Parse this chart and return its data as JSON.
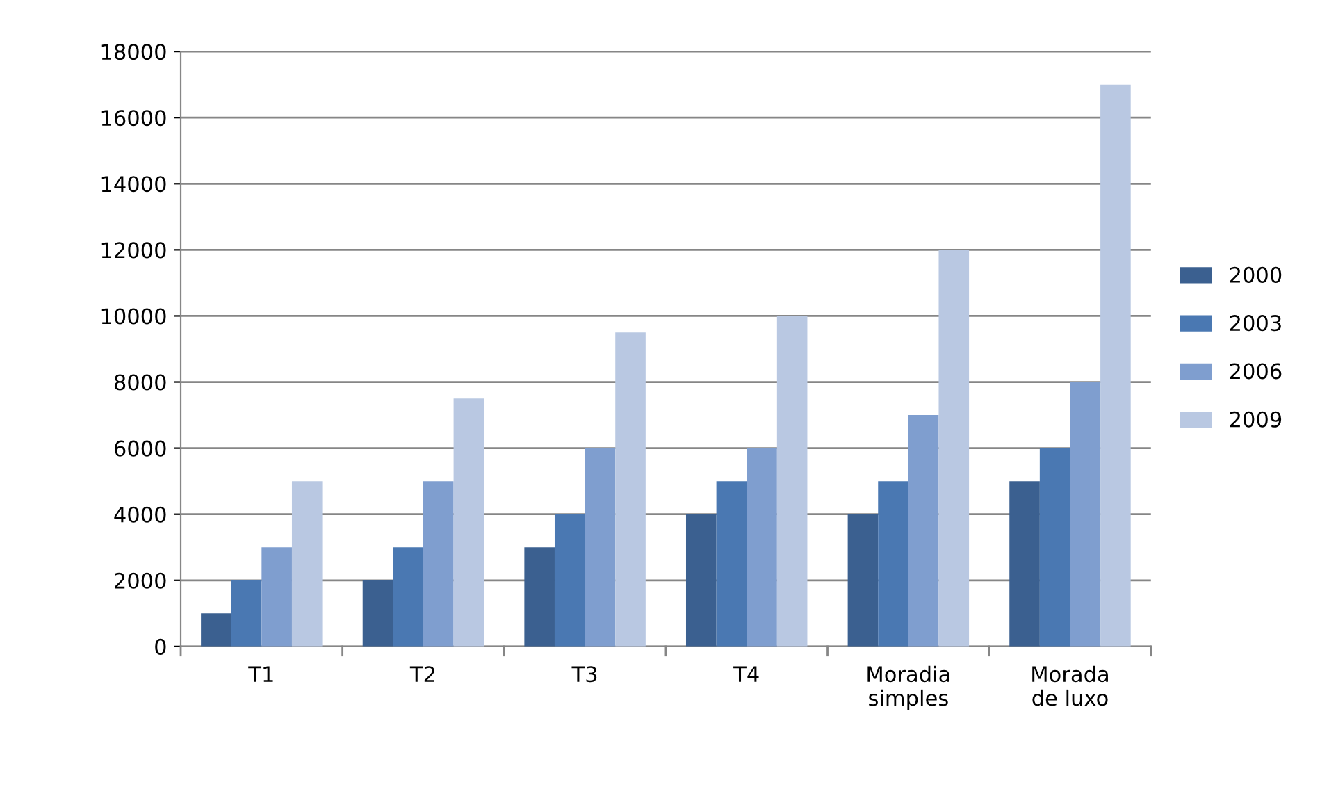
{
  "chart_data": {
    "type": "bar",
    "categories": [
      "T1",
      "T2",
      "T3",
      "T4",
      "Moradia simples",
      "Morada de luxo"
    ],
    "series": [
      {
        "name": "2000",
        "color": "#3b6090",
        "values": [
          1000,
          2000,
          3000,
          4000,
          4000,
          5000
        ]
      },
      {
        "name": "2003",
        "color": "#4a78b2",
        "values": [
          2000,
          3000,
          4000,
          5000,
          5000,
          6000
        ]
      },
      {
        "name": "2006",
        "color": "#7f9ecf",
        "values": [
          3000,
          5000,
          6000,
          6000,
          7000,
          8000
        ]
      },
      {
        "name": "2009",
        "color": "#b9c8e2",
        "values": [
          5000,
          7500,
          9500,
          10000,
          12000,
          17000
        ]
      }
    ],
    "ylim": [
      0,
      18000
    ],
    "yticks": [
      0,
      2000,
      4000,
      6000,
      8000,
      10000,
      12000,
      14000,
      16000,
      18000
    ],
    "grid": "y",
    "legend": "right"
  }
}
